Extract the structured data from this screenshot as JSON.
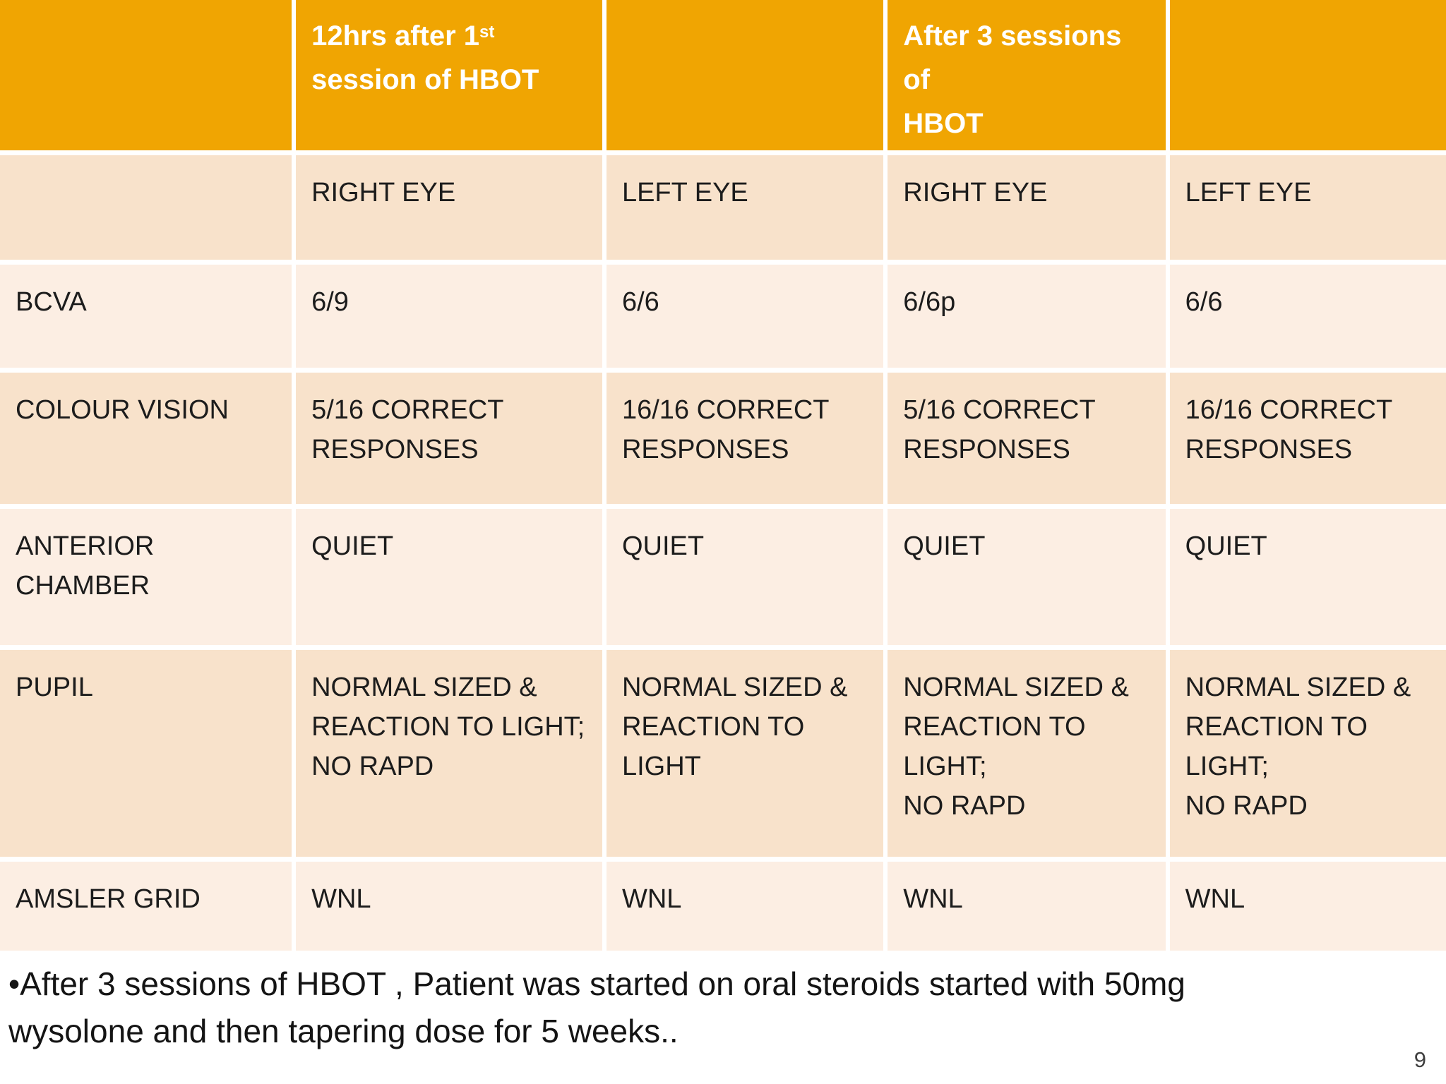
{
  "slide": {
    "page_number": "9",
    "footer_note": "•After 3 sessions of HBOT , Patient was started on oral steroids started with 50mg\nwysolone and then tapering dose for 5 weeks..",
    "colors": {
      "header_bg": "#F0A502",
      "row_dark_bg": "#F8E2CB",
      "row_light_bg": "#FCEEE3",
      "header_text": "#FFFFFF",
      "body_text": "#1C1C1C",
      "page_number_text": "#3F3F3F"
    }
  },
  "table": {
    "header": {
      "col1": "",
      "col2": {
        "prefix": "12hrs after 1",
        "superscript": "st",
        "suffix": "session of HBOT"
      },
      "col3": "",
      "col4": "After 3 sessions of\nHBOT",
      "col5": ""
    },
    "subheader": [
      "",
      "RIGHT EYE",
      "LEFT EYE",
      "RIGHT EYE",
      "LEFT EYE"
    ],
    "rows": [
      {
        "label": "BCVA",
        "cells": [
          "6/9",
          "6/6",
          "6/6p",
          "6/6"
        ]
      },
      {
        "label": "COLOUR VISION",
        "cells": [
          "5/16 CORRECT\nRESPONSES",
          "16/16 CORRECT\nRESPONSES",
          "5/16 CORRECT\nRESPONSES",
          "16/16 CORRECT\nRESPONSES"
        ]
      },
      {
        "label": "ANTERIOR\nCHAMBER",
        "cells": [
          "QUIET",
          "QUIET",
          "QUIET",
          "QUIET"
        ]
      },
      {
        "label": "PUPIL",
        "cells": [
          "NORMAL SIZED  &\nREACTION TO LIGHT;\nNO RAPD",
          "NORMAL SIZED  &\nREACTION TO\nLIGHT",
          "NORMAL SIZED  &\nREACTION TO\nLIGHT;\nNO RAPD",
          "NORMAL SIZED  &\nREACTION TO\nLIGHT;\nNO RAPD"
        ]
      },
      {
        "label": "AMSLER GRID",
        "cells": [
          "WNL",
          "WNL",
          "WNL",
          "WNL"
        ]
      }
    ]
  }
}
